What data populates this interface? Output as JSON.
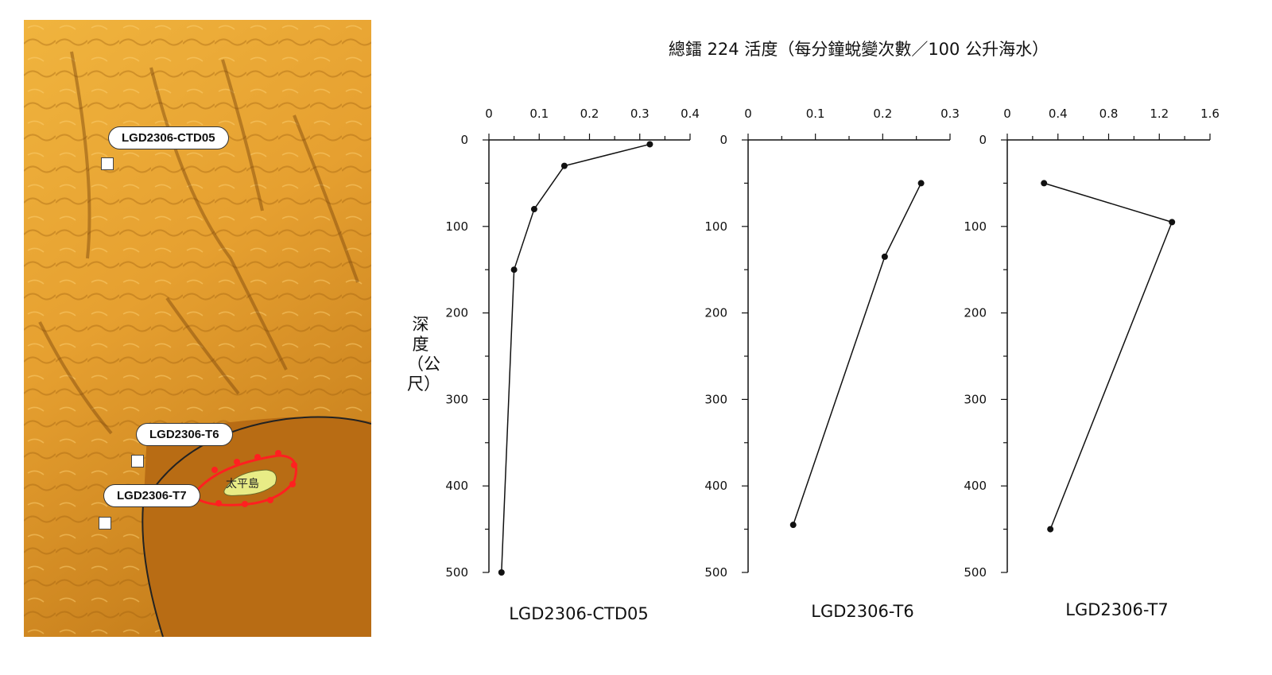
{
  "map": {
    "stations": [
      {
        "label": "LGD2306-CTD05"
      },
      {
        "label": "LGD2306-T6"
      },
      {
        "label": "LGD2306-T7"
      }
    ],
    "island_label": "太平島",
    "colors": {
      "ocean_dark": "#b56a12",
      "ocean_light": "#e9a73a",
      "island": "#e8ec86",
      "boundary": "#ff2020"
    }
  },
  "chart": {
    "title": "總鐳 224 活度（每分鐘蛻變次數／100 公升海水）",
    "ylabel": "深度（公尺）"
  },
  "chart_data": [
    {
      "type": "line",
      "name": "LGD2306-CTD05",
      "x": [
        0.32,
        0.15,
        0.09,
        0.05,
        0.025
      ],
      "y": [
        5,
        30,
        80,
        150,
        500
      ],
      "xlim": [
        0,
        0.4
      ],
      "xticks": [
        "0",
        "0.1",
        "0.2",
        "0.3",
        "0.4"
      ],
      "ylim": [
        0,
        500
      ],
      "yticks": [
        "0",
        "100",
        "200",
        "300",
        "400",
        "500"
      ]
    },
    {
      "type": "line",
      "name": "LGD2306-T6",
      "x": [
        0.257,
        0.203,
        0.067
      ],
      "y": [
        50,
        135,
        445
      ],
      "xlim": [
        0,
        0.3
      ],
      "xticks": [
        "0",
        "0.1",
        "0.2",
        "0.3"
      ],
      "ylim": [
        0,
        500
      ],
      "yticks": [
        "0",
        "100",
        "200",
        "300",
        "400",
        "500"
      ]
    },
    {
      "type": "line",
      "name": "LGD2306-T7",
      "x": [
        0.29,
        1.3,
        0.34
      ],
      "y": [
        50,
        95,
        450
      ],
      "xlim": [
        0,
        1.6
      ],
      "xticks": [
        "0",
        "0.4",
        "0.8",
        "1.2",
        "1.6"
      ],
      "ylim": [
        0,
        500
      ],
      "yticks": [
        "0",
        "100",
        "200",
        "300",
        "400",
        "500"
      ]
    }
  ]
}
